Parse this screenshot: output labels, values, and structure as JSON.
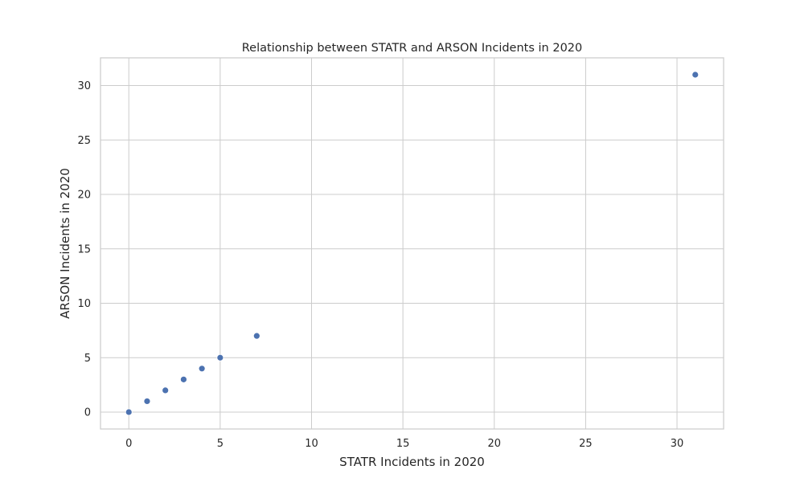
{
  "chart_data": {
    "type": "scatter",
    "title": "Relationship between STATR and ARSON Incidents in 2020",
    "xlabel": "STATR Incidents in 2020",
    "ylabel": "ARSON Incidents in 2020",
    "xlim": [
      -1.55,
      32.55
    ],
    "ylim": [
      -1.55,
      32.55
    ],
    "xticks": [
      0,
      5,
      10,
      15,
      20,
      25,
      30
    ],
    "yticks": [
      0,
      5,
      10,
      15,
      20,
      25,
      30
    ],
    "x_tick_labels": [
      "0",
      "5",
      "10",
      "15",
      "20",
      "25",
      "30"
    ],
    "y_tick_labels": [
      "0",
      "5",
      "10",
      "15",
      "20",
      "25",
      "30"
    ],
    "grid": true,
    "points": [
      {
        "x": 0,
        "y": 0
      },
      {
        "x": 1,
        "y": 1
      },
      {
        "x": 2,
        "y": 2
      },
      {
        "x": 3,
        "y": 3
      },
      {
        "x": 4,
        "y": 4
      },
      {
        "x": 5,
        "y": 5
      },
      {
        "x": 7,
        "y": 7
      },
      {
        "x": 31,
        "y": 31
      }
    ],
    "colors": {
      "point": "#4c72b0",
      "grid": "#cccccc",
      "text": "#262626",
      "background": "#ffffff"
    }
  }
}
